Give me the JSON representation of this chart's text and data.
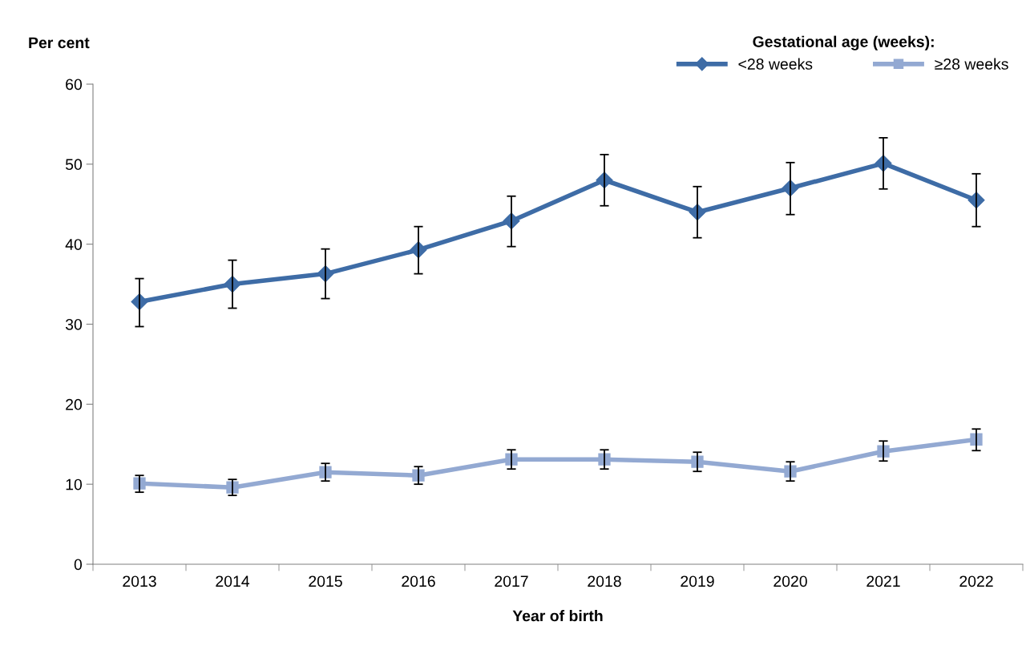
{
  "chart_data": {
    "type": "line",
    "xlabel": "Year of birth",
    "ylabel": "Per cent",
    "legend_title": "Gestational age (weeks):",
    "legend": "top right",
    "grid": false,
    "categories": [
      "2013",
      "2014",
      "2015",
      "2016",
      "2017",
      "2018",
      "2019",
      "2020",
      "2021",
      "2022"
    ],
    "ylim": [
      0,
      60
    ],
    "yticks": [
      0,
      10,
      20,
      30,
      40,
      50,
      60
    ],
    "series": [
      {
        "name": "<28 weeks",
        "color": "#3e6ca6",
        "marker": "diamond",
        "values": [
          32.8,
          35.0,
          36.3,
          39.3,
          42.9,
          48.0,
          44.0,
          47.0,
          50.1,
          45.5
        ],
        "errors": [
          [
            29.7,
            35.7
          ],
          [
            32.0,
            38.0
          ],
          [
            33.2,
            39.4
          ],
          [
            36.3,
            42.2
          ],
          [
            39.7,
            46.0
          ],
          [
            44.8,
            51.2
          ],
          [
            40.8,
            47.2
          ],
          [
            43.7,
            50.2
          ],
          [
            46.9,
            53.3
          ],
          [
            42.2,
            48.8
          ]
        ]
      },
      {
        "name": "≥28 weeks",
        "color": "#93a9d2",
        "marker": "square",
        "values": [
          10.1,
          9.6,
          11.5,
          11.1,
          13.1,
          13.1,
          12.8,
          11.6,
          14.1,
          15.6
        ],
        "errors": [
          [
            9.0,
            11.1
          ],
          [
            8.6,
            10.6
          ],
          [
            10.4,
            12.6
          ],
          [
            10.0,
            12.2
          ],
          [
            11.9,
            14.3
          ],
          [
            11.9,
            14.3
          ],
          [
            11.6,
            14.0
          ],
          [
            10.4,
            12.8
          ],
          [
            12.9,
            15.4
          ],
          [
            14.2,
            16.9
          ]
        ]
      }
    ]
  }
}
